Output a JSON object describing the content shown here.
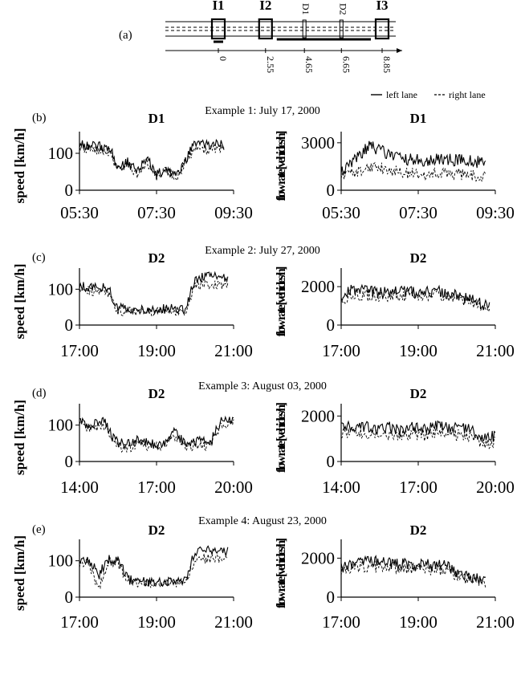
{
  "figure": {
    "panel_a": "(a)",
    "legend_solid": "left lane",
    "legend_dashed": "right lane",
    "road": {
      "station_labels": [
        "I1",
        "I2",
        "D1",
        "D2",
        "I3"
      ],
      "distance_ticks": [
        "0",
        "2.55",
        "4.65",
        "6.65",
        "8.85"
      ],
      "distances_km": [
        0,
        2.55,
        4.65,
        6.65,
        8.85
      ]
    }
  },
  "chart_data": [
    {
      "type": "line",
      "example": "Example 1: July 17, 2000",
      "panel": "(b)",
      "speed": {
        "title": "D1",
        "ylabel": "speed [km/h]",
        "ylim": [
          0,
          150
        ],
        "yticks": [
          0,
          100
        ],
        "xticks": [
          "05:30",
          "07:30",
          "09:30"
        ],
        "x_range_h": [
          5.5,
          9.5
        ],
        "series": [
          {
            "name": "left lane",
            "x": [
              5.5,
              6.0,
              6.3,
              6.5,
              6.75,
              7.0,
              7.25,
              7.5,
              7.75,
              8.0,
              8.25,
              8.5,
              8.75,
              9.0,
              9.25
            ],
            "values": [
              125,
              118,
              115,
              60,
              75,
              50,
              90,
              40,
              60,
              35,
              80,
              130,
              120,
              125,
              120
            ]
          },
          {
            "name": "right lane",
            "x": [
              5.5,
              6.0,
              6.3,
              6.5,
              6.75,
              7.0,
              7.25,
              7.5,
              7.75,
              8.0,
              8.25,
              8.5,
              8.75,
              9.0,
              9.25
            ],
            "values": [
              115,
              110,
              105,
              55,
              70,
              45,
              80,
              35,
              55,
              30,
              75,
              115,
              110,
              112,
              108
            ]
          }
        ]
      },
      "flow": {
        "title": "D1",
        "ylabel": "flow rate [vehicles/h]",
        "ylim": [
          0,
          3500
        ],
        "yticks": [
          0,
          3000
        ],
        "xticks": [
          "05:30",
          "07:30",
          "09:30"
        ],
        "x_range_h": [
          5.5,
          9.5
        ],
        "series": [
          {
            "name": "left lane",
            "x": [
              5.5,
              6.0,
              6.25,
              6.5,
              6.75,
              7.0,
              7.5,
              8.0,
              8.5,
              9.0,
              9.25
            ],
            "values": [
              1200,
              2200,
              2900,
              2500,
              2300,
              2000,
              1900,
              1950,
              1900,
              1800,
              1750
            ]
          },
          {
            "name": "right lane",
            "x": [
              5.5,
              6.0,
              6.25,
              6.5,
              6.75,
              7.0,
              7.5,
              8.0,
              8.5,
              9.0,
              9.25
            ],
            "values": [
              900,
              1300,
              1500,
              1400,
              1300,
              1100,
              1000,
              1050,
              1000,
              950,
              900
            ]
          }
        ]
      }
    },
    {
      "type": "line",
      "example": "Example 2: July 27, 2000",
      "panel": "(c)",
      "speed": {
        "title": "D2",
        "ylabel": "speed [km/h]",
        "ylim": [
          0,
          150
        ],
        "yticks": [
          0,
          100
        ],
        "xticks": [
          "17:00",
          "19:00",
          "21:00"
        ],
        "x_range_h": [
          17,
          21
        ],
        "series": [
          {
            "name": "left lane",
            "x": [
              17,
              17.5,
              17.75,
              18.0,
              18.5,
              19.0,
              19.5,
              19.75,
              20.0,
              20.5,
              20.85
            ],
            "values": [
              108,
              105,
              100,
              50,
              45,
              42,
              48,
              45,
              130,
              135,
              133
            ]
          },
          {
            "name": "right lane",
            "x": [
              17,
              17.5,
              17.75,
              18.0,
              18.5,
              19.0,
              19.5,
              19.75,
              20.0,
              20.5,
              20.85
            ],
            "values": [
              98,
              95,
              90,
              40,
              38,
              36,
              40,
              38,
              110,
              115,
              112
            ]
          }
        ]
      },
      "flow": {
        "title": "D2",
        "ylabel": "flow rate [vehicles/h]",
        "ylim": [
          0,
          2800
        ],
        "yticks": [
          0,
          2000
        ],
        "xticks": [
          "17:00",
          "19:00",
          "21:00"
        ],
        "x_range_h": [
          17,
          21
        ],
        "series": [
          {
            "name": "left lane",
            "x": [
              17,
              17.25,
              17.5,
              18.0,
              18.5,
              19.0,
              19.5,
              20.0,
              20.5,
              20.85
            ],
            "values": [
              1500,
              1900,
              1800,
              1700,
              1750,
              1700,
              1750,
              1550,
              1200,
              950
            ]
          },
          {
            "name": "right lane",
            "x": [
              17,
              17.25,
              17.5,
              18.0,
              18.5,
              19.0,
              19.5,
              20.0,
              20.5,
              20.85
            ],
            "values": [
              1300,
              1600,
              1550,
              1500,
              1550,
              1500,
              1600,
              1400,
              1100,
              850
            ]
          }
        ]
      }
    },
    {
      "type": "line",
      "example": "Example 3: August 03, 2000",
      "panel": "(d)",
      "speed": {
        "title": "D2",
        "ylabel": "speed [km/h]",
        "ylim": [
          0,
          150
        ],
        "yticks": [
          0,
          100
        ],
        "xticks": [
          "14:00",
          "17:00",
          "20:00"
        ],
        "x_range_h": [
          14,
          20.5
        ],
        "series": [
          {
            "name": "left lane",
            "x": [
              14,
              14.5,
              15.0,
              15.5,
              16.0,
              16.5,
              17.0,
              17.5,
              18.0,
              18.5,
              19.0,
              19.5,
              20.0,
              20.5
            ],
            "values": [
              110,
              100,
              115,
              55,
              45,
              60,
              50,
              45,
              80,
              45,
              55,
              50,
              115,
              118
            ]
          },
          {
            "name": "right lane",
            "x": [
              14,
              14.5,
              15.0,
              15.5,
              16.0,
              16.5,
              17.0,
              17.5,
              18.0,
              18.5,
              19.0,
              19.5,
              20.0,
              20.5
            ],
            "values": [
              100,
              90,
              105,
              45,
              35,
              50,
              40,
              38,
              70,
              38,
              45,
              42,
              105,
              108
            ]
          }
        ]
      },
      "flow": {
        "title": "D2",
        "ylabel": "flow rate [vehicles/h]",
        "ylim": [
          0,
          2400
        ],
        "yticks": [
          0,
          2000
        ],
        "xticks": [
          "14:00",
          "17:00",
          "20:00"
        ],
        "x_range_h": [
          14,
          20.5
        ],
        "series": [
          {
            "name": "left lane",
            "x": [
              14,
              14.5,
              15.0,
              15.5,
              16.0,
              16.5,
              17.0,
              17.5,
              18.0,
              18.5,
              19.0,
              19.5,
              20.0,
              20.5
            ],
            "values": [
              1500,
              1600,
              1550,
              1450,
              1500,
              1400,
              1500,
              1450,
              1550,
              1500,
              1450,
              1400,
              1050,
              1100
            ]
          },
          {
            "name": "right lane",
            "x": [
              14,
              14.5,
              15.0,
              15.5,
              16.0,
              16.5,
              17.0,
              17.5,
              18.0,
              18.5,
              19.0,
              19.5,
              20.0,
              20.5
            ],
            "values": [
              1200,
              1300,
              1250,
              1150,
              1200,
              1150,
              1200,
              1150,
              1250,
              1200,
              1150,
              1100,
              800,
              850
            ]
          }
        ]
      }
    },
    {
      "type": "line",
      "example": "Example 4: August 23, 2000",
      "panel": "(e)",
      "speed": {
        "title": "D2",
        "ylabel": "speed [km/h]",
        "ylim": [
          0,
          150
        ],
        "yticks": [
          0,
          100
        ],
        "xticks": [
          "17:00",
          "19:00",
          "21:00"
        ],
        "x_range_h": [
          17,
          21
        ],
        "series": [
          {
            "name": "left lane",
            "x": [
              17,
              17.25,
              17.5,
              17.75,
              18.0,
              18.25,
              18.5,
              19.0,
              19.5,
              19.75,
              20.0,
              20.5,
              20.85
            ],
            "values": [
              105,
              100,
              60,
              105,
              100,
              50,
              45,
              42,
              48,
              45,
              125,
              130,
              125
            ]
          },
          {
            "name": "right lane",
            "x": [
              17,
              17.25,
              17.5,
              17.75,
              18.0,
              18.25,
              18.5,
              19.0,
              19.5,
              19.75,
              20.0,
              20.5,
              20.85
            ],
            "values": [
              95,
              90,
              25,
              95,
              90,
              42,
              40,
              38,
              40,
              38,
              105,
              108,
              105
            ]
          }
        ]
      },
      "flow": {
        "title": "D2",
        "ylabel": "flow rate [vehicles/h]",
        "ylim": [
          0,
          2800
        ],
        "yticks": [
          0,
          2000
        ],
        "xticks": [
          "17:00",
          "19:00",
          "21:00"
        ],
        "x_range_h": [
          17,
          21
        ],
        "series": [
          {
            "name": "left lane",
            "x": [
              17,
              17.5,
              18.0,
              18.5,
              19.0,
              19.5,
              19.75,
              20.0,
              20.5,
              20.75
            ],
            "values": [
              1500,
              1900,
              1800,
              1700,
              1700,
              1600,
              1650,
              1200,
              1000,
              850
            ]
          },
          {
            "name": "right lane",
            "x": [
              17,
              17.5,
              18.0,
              18.5,
              19.0,
              19.5,
              19.75,
              20.0,
              20.5,
              20.75
            ],
            "values": [
              1300,
              1600,
              1550,
              1500,
              1500,
              1400,
              1450,
              1050,
              900,
              700
            ]
          }
        ]
      }
    }
  ]
}
